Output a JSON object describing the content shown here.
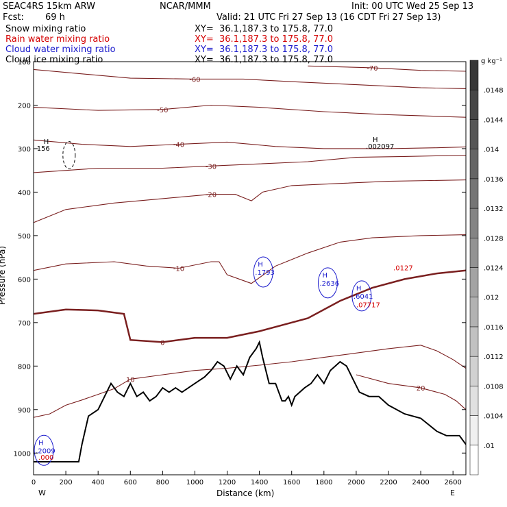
{
  "header": {
    "model": "SEAC4RS 15km ARW",
    "org": "NCAR/MMM",
    "init": "Init: 00 UTC Wed 25 Sep 13",
    "fcst_label": "Fcst:",
    "fcst_value": "69 h",
    "valid": "Valid: 21 UTC Fri 27 Sep 13 (16 CDT Fri 27 Sep 13)"
  },
  "fields": [
    {
      "name": "Snow mixing ratio",
      "xy": "XY=  36.1,187.3 to 175.8, 77.0",
      "color": "#000000"
    },
    {
      "name": "Rain water mixing ratio",
      "xy": "XY=  36.1,187.3 to 175.8, 77.0",
      "color": "#d40000"
    },
    {
      "name": "Cloud water mixing ratio",
      "xy": "XY=  36.1,187.3 to 175.8, 77.0",
      "color": "#1a1acc"
    },
    {
      "name": "Cloud ice mixing ratio",
      "xy": "XY=  36.1,187.3 to 175.8, 77.0",
      "color": "#000000"
    }
  ],
  "chart_data": {
    "type": "cross-section contour",
    "xlabel": "Distance (km)",
    "ylabel": "Pressure (hPa)",
    "xlim": [
      0,
      2680
    ],
    "ylim": [
      1050,
      100
    ],
    "xticks": [
      0,
      200,
      400,
      600,
      800,
      1000,
      1200,
      1400,
      1600,
      1800,
      2000,
      2200,
      2400,
      2600
    ],
    "yticks": [
      100,
      200,
      300,
      400,
      500,
      600,
      700,
      800,
      900,
      1000
    ],
    "ytick_labels": [
      "100",
      "200",
      "300",
      "400",
      "500",
      "600",
      "700",
      "800",
      "900",
      "1000"
    ],
    "endpoints": {
      "left": "W",
      "right": "E"
    },
    "colorbar": {
      "unit": "g kg⁻¹",
      "values": [
        ".01",
        ".0104",
        ".0108",
        ".0112",
        ".0116",
        ".012",
        ".0124",
        ".0128",
        ".0132",
        ".0136",
        ".014",
        ".0144",
        ".0148"
      ]
    },
    "temperature_contours": [
      {
        "level": -70,
        "label": "-70",
        "points": [
          [
            1700,
            110
          ],
          [
            2100,
            114
          ],
          [
            2400,
            120
          ],
          [
            2680,
            122
          ]
        ]
      },
      {
        "level": -60,
        "label": "-60",
        "points": [
          [
            0,
            118
          ],
          [
            300,
            128
          ],
          [
            600,
            138
          ],
          [
            1000,
            140
          ],
          [
            1300,
            140
          ],
          [
            1600,
            146
          ],
          [
            2000,
            153
          ],
          [
            2400,
            160
          ],
          [
            2680,
            162
          ]
        ]
      },
      {
        "level": -50,
        "label": "-50",
        "points": [
          [
            0,
            205
          ],
          [
            400,
            212
          ],
          [
            800,
            210
          ],
          [
            1100,
            200
          ],
          [
            1400,
            205
          ],
          [
            1800,
            215
          ],
          [
            2200,
            222
          ],
          [
            2680,
            228
          ]
        ]
      },
      {
        "level": -40,
        "label": "-40",
        "points": [
          [
            0,
            280
          ],
          [
            300,
            290
          ],
          [
            600,
            295
          ],
          [
            900,
            290
          ],
          [
            1200,
            285
          ],
          [
            1500,
            295
          ],
          [
            1800,
            300
          ],
          [
            2200,
            300
          ],
          [
            2500,
            298
          ],
          [
            2680,
            296
          ]
        ]
      },
      {
        "level": -30,
        "label": "-30",
        "points": [
          [
            0,
            355
          ],
          [
            400,
            345
          ],
          [
            800,
            345
          ],
          [
            1100,
            340
          ],
          [
            1400,
            335
          ],
          [
            1700,
            330
          ],
          [
            2000,
            320
          ],
          [
            2300,
            318
          ],
          [
            2680,
            315
          ]
        ]
      },
      {
        "level": -20,
        "label": "-20",
        "points": [
          [
            0,
            470
          ],
          [
            200,
            440
          ],
          [
            500,
            425
          ],
          [
            800,
            415
          ],
          [
            1100,
            405
          ],
          [
            1250,
            405
          ],
          [
            1350,
            420
          ],
          [
            1420,
            400
          ],
          [
            1600,
            385
          ],
          [
            1900,
            380
          ],
          [
            2200,
            375
          ],
          [
            2680,
            372
          ]
        ]
      },
      {
        "level": -10,
        "label": "-10",
        "points": [
          [
            0,
            580
          ],
          [
            200,
            565
          ],
          [
            500,
            560
          ],
          [
            600,
            565
          ],
          [
            700,
            570
          ],
          [
            900,
            575
          ],
          [
            1100,
            560
          ],
          [
            1150,
            560
          ],
          [
            1200,
            590
          ],
          [
            1350,
            610
          ],
          [
            1500,
            570
          ],
          [
            1700,
            540
          ],
          [
            1900,
            515
          ],
          [
            2100,
            505
          ],
          [
            2400,
            500
          ],
          [
            2680,
            498
          ]
        ]
      },
      {
        "level": 0,
        "label": "0",
        "bold": true,
        "points": [
          [
            0,
            680
          ],
          [
            200,
            670
          ],
          [
            400,
            672
          ],
          [
            560,
            680
          ],
          [
            600,
            740
          ],
          [
            800,
            745
          ],
          [
            1000,
            735
          ],
          [
            1200,
            735
          ],
          [
            1400,
            720
          ],
          [
            1600,
            700
          ],
          [
            1700,
            690
          ],
          [
            1900,
            650
          ],
          [
            2100,
            620
          ],
          [
            2300,
            600
          ],
          [
            2500,
            587
          ],
          [
            2680,
            580
          ]
        ]
      },
      {
        "level": 10,
        "label": "10",
        "points": [
          [
            0,
            918
          ],
          [
            100,
            910
          ],
          [
            200,
            890
          ],
          [
            300,
            878
          ],
          [
            400,
            865
          ],
          [
            500,
            852
          ],
          [
            600,
            830
          ],
          [
            800,
            820
          ],
          [
            1000,
            810
          ],
          [
            1200,
            805
          ],
          [
            1400,
            798
          ],
          [
            1600,
            790
          ],
          [
            1800,
            780
          ],
          [
            2000,
            770
          ],
          [
            2200,
            760
          ],
          [
            2400,
            752
          ],
          [
            2500,
            765
          ],
          [
            2600,
            785
          ],
          [
            2680,
            805
          ]
        ]
      },
      {
        "level": 20,
        "label": "20",
        "points": [
          [
            2000,
            820
          ],
          [
            2200,
            840
          ],
          [
            2400,
            850
          ],
          [
            2550,
            865
          ],
          [
            2620,
            880
          ],
          [
            2680,
            900
          ]
        ]
      }
    ],
    "terrain": [
      [
        0,
        1020
      ],
      [
        280,
        1020
      ],
      [
        300,
        980
      ],
      [
        340,
        915
      ],
      [
        400,
        900
      ],
      [
        440,
        870
      ],
      [
        480,
        840
      ],
      [
        520,
        860
      ],
      [
        560,
        870
      ],
      [
        600,
        840
      ],
      [
        640,
        870
      ],
      [
        680,
        860
      ],
      [
        720,
        880
      ],
      [
        760,
        870
      ],
      [
        800,
        850
      ],
      [
        840,
        860
      ],
      [
        880,
        850
      ],
      [
        920,
        860
      ],
      [
        960,
        850
      ],
      [
        1000,
        840
      ],
      [
        1060,
        825
      ],
      [
        1100,
        810
      ],
      [
        1140,
        790
      ],
      [
        1180,
        800
      ],
      [
        1220,
        830
      ],
      [
        1260,
        800
      ],
      [
        1300,
        820
      ],
      [
        1340,
        780
      ],
      [
        1380,
        760
      ],
      [
        1400,
        745
      ],
      [
        1420,
        780
      ],
      [
        1460,
        840
      ],
      [
        1500,
        840
      ],
      [
        1540,
        880
      ],
      [
        1560,
        880
      ],
      [
        1580,
        870
      ],
      [
        1600,
        890
      ],
      [
        1620,
        870
      ],
      [
        1680,
        850
      ],
      [
        1720,
        840
      ],
      [
        1760,
        820
      ],
      [
        1800,
        840
      ],
      [
        1840,
        810
      ],
      [
        1900,
        790
      ],
      [
        1940,
        800
      ],
      [
        1980,
        830
      ],
      [
        2020,
        860
      ],
      [
        2080,
        870
      ],
      [
        2140,
        870
      ],
      [
        2200,
        890
      ],
      [
        2300,
        910
      ],
      [
        2400,
        920
      ],
      [
        2500,
        950
      ],
      [
        2560,
        960
      ],
      [
        2600,
        960
      ],
      [
        2640,
        960
      ],
      [
        2680,
        980
      ]
    ],
    "cloud_water_maxima": [
      {
        "label": ".1793",
        "x": 1390,
        "p": 590
      },
      {
        "label": ".2636",
        "x": 1790,
        "p": 615
      },
      {
        "label": ".6041",
        "x": 2000,
        "p": 645
      },
      {
        "label": ".2009",
        "x": 30,
        "p": 1000
      }
    ],
    "rain_maxima": [
      {
        "label": ".0127",
        "x": 2230,
        "p": 580
      },
      {
        "label": ".07717",
        "x": 2000,
        "p": 665
      },
      {
        "label": ".000",
        "x": 30,
        "p": 1015
      }
    ],
    "snow_labels": [
      {
        "label": "156",
        "x": 20,
        "p": 305
      },
      {
        "label": ".002097",
        "x": 2060,
        "p": 300
      }
    ]
  }
}
